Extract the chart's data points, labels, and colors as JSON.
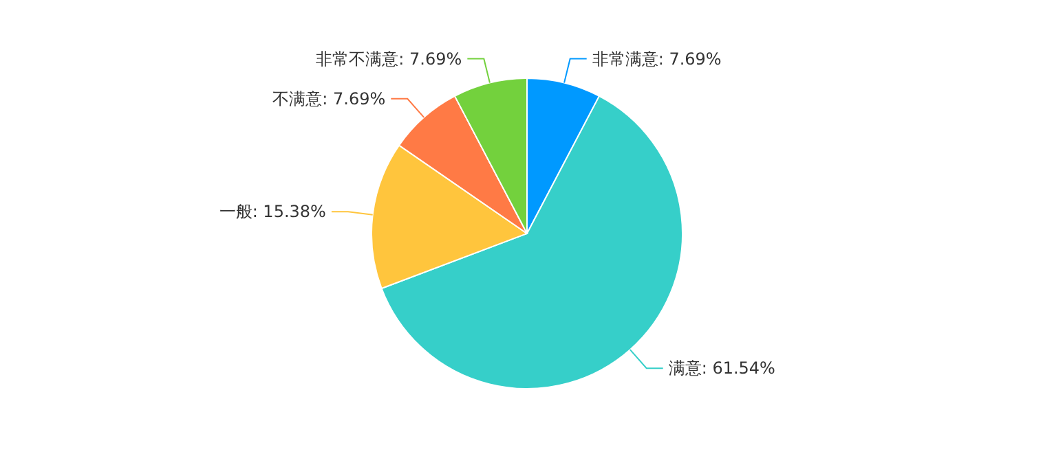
{
  "chart_data": {
    "type": "pie",
    "categories": [
      "非常满意",
      "满意",
      "一般",
      "不满意",
      "非常不满意"
    ],
    "values": [
      7.69,
      61.54,
      15.38,
      7.69,
      7.69
    ],
    "value_labels": [
      ": 7.69%",
      ": 61.54%",
      ": 15.38%",
      ": 7.69%",
      ": 7.69%"
    ],
    "legend": false,
    "colors": [
      "#0099ff",
      "#36cfc9",
      "#ffc53d",
      "#ff7a45",
      "#73d13d"
    ]
  }
}
